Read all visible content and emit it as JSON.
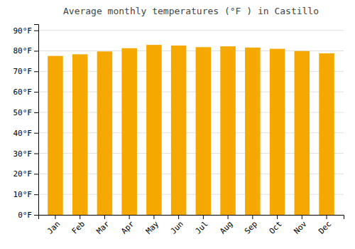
{
  "chart_data": {
    "type": "bar",
    "title": "Average monthly temperatures (°F ) in Castillo",
    "categories": [
      "Jan",
      "Feb",
      "Mar",
      "Apr",
      "May",
      "Jun",
      "Jul",
      "Aug",
      "Sep",
      "Oct",
      "Nov",
      "Dec"
    ],
    "values": [
      77.5,
      78.3,
      79.7,
      81.3,
      82.9,
      82.6,
      81.8,
      82.2,
      81.6,
      81.0,
      79.9,
      78.8
    ],
    "color": "#F5A800",
    "ylim": [
      0,
      93
    ],
    "yticks": [
      {
        "value": 0,
        "label": "0°F"
      },
      {
        "value": 10,
        "label": "10°F"
      },
      {
        "value": 20,
        "label": "20°F"
      },
      {
        "value": 30,
        "label": "30°F"
      },
      {
        "value": 40,
        "label": "40°F"
      },
      {
        "value": 50,
        "label": "50°F"
      },
      {
        "value": 60,
        "label": "60°F"
      },
      {
        "value": 70,
        "label": "70°F"
      },
      {
        "value": 80,
        "label": "80°F"
      },
      {
        "value": 90,
        "label": "90°F"
      }
    ],
    "grid": true
  }
}
